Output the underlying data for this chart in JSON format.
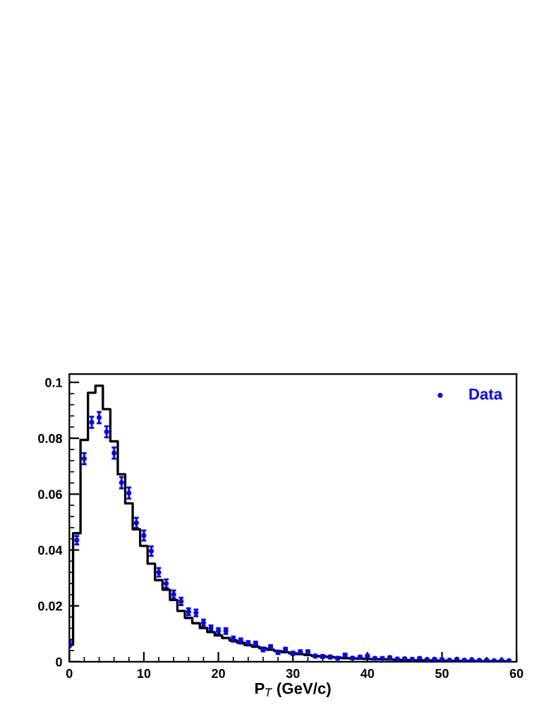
{
  "chart_data": {
    "type": "scatter",
    "xlabel": "P$_{T}$ (GeV/c)",
    "xlim": [
      0,
      60
    ],
    "xticks": [
      0,
      10,
      20,
      30,
      40,
      50,
      60
    ],
    "ylim": [
      0,
      0.103
    ],
    "yticks": [
      0,
      0.02,
      0.04,
      0.06,
      0.08,
      0.1
    ],
    "legend": "top right",
    "grid": false,
    "series": [
      {
        "name": "Data",
        "color": "#0000ff",
        "marker": "circle",
        "x": [
          0,
          1,
          2,
          3,
          4,
          5,
          6,
          7,
          8,
          9,
          10,
          11,
          12,
          13,
          14,
          15,
          16,
          17,
          18,
          19,
          20,
          21,
          22,
          23,
          24,
          25,
          26,
          27,
          28,
          29,
          30,
          31,
          32,
          33,
          34,
          35,
          36,
          37,
          38,
          39,
          40,
          41,
          42,
          43,
          44,
          45,
          46,
          47,
          48,
          49,
          50,
          51,
          52,
          53,
          54,
          55,
          56,
          57,
          58,
          59
        ],
        "values": [
          0.0064,
          0.0435,
          0.0727,
          0.0857,
          0.0874,
          0.0823,
          0.0747,
          0.0641,
          0.0604,
          0.0497,
          0.0452,
          0.0396,
          0.032,
          0.028,
          0.0241,
          0.0216,
          0.0179,
          0.0175,
          0.014,
          0.012,
          0.011,
          0.011,
          0.0081,
          0.0074,
          0.0066,
          0.0064,
          0.0044,
          0.0052,
          0.0034,
          0.0044,
          0.003,
          0.0035,
          0.0035,
          0.002,
          0.0019,
          0.0017,
          0.0013,
          0.0024,
          0.0013,
          0.0017,
          0.002,
          0.0012,
          0.0012,
          0.0015,
          0.001,
          0.0011,
          0.0009,
          0.0012,
          0.0008,
          0.0009,
          0.0008,
          0.0006,
          0.0009,
          0.0006,
          0.0007,
          0.0005,
          0.0006,
          0.0004,
          0.0005,
          0.0004
        ],
        "errors": [
          0.001,
          0.0015,
          0.002,
          0.002,
          0.002,
          0.002,
          0.002,
          0.002,
          0.002,
          0.0018,
          0.0018,
          0.0017,
          0.0015,
          0.0015,
          0.0014,
          0.0013,
          0.0012,
          0.0012,
          0.0011,
          0.001,
          0.001,
          0.001,
          0.0009,
          0.0009,
          0.0008,
          0.0008,
          0.0007,
          0.0007,
          0.0006,
          0.0006,
          0.0006,
          0.0006,
          0.0006,
          0.0005,
          0.0005,
          0.0005,
          0.0004,
          0.0005,
          0.0004,
          0.0004,
          0.0005,
          0.0004,
          0.0004,
          0.0004,
          0.0003,
          0.0003,
          0.0003,
          0.0003,
          0.0003,
          0.0003,
          0.0003,
          0.0002,
          0.0003,
          0.0002,
          0.0002,
          0.0002,
          0.0002,
          0.0002,
          0.0002,
          0.0002
        ]
      },
      {
        "type": "step",
        "color": "#000000",
        "line_style": "solid",
        "x": [
          0,
          1,
          2,
          3,
          4,
          5,
          6,
          7,
          8,
          9,
          10,
          11,
          12,
          13,
          14,
          15,
          16,
          17,
          18,
          19,
          20,
          21,
          22,
          23,
          24,
          25,
          26,
          27,
          28,
          29,
          30,
          31,
          32,
          33,
          34,
          35,
          36,
          37,
          38,
          39,
          40,
          41,
          42,
          43,
          44,
          45,
          46,
          47,
          48,
          49,
          50,
          51,
          52,
          53,
          54,
          55,
          56,
          57,
          58,
          59
        ],
        "values": [
          0.0061,
          0.046,
          0.0794,
          0.0963,
          0.0988,
          0.0904,
          0.0789,
          0.0671,
          0.0567,
          0.0474,
          0.0415,
          0.0351,
          0.0292,
          0.0258,
          0.0221,
          0.0182,
          0.0157,
          0.0138,
          0.0121,
          0.0106,
          0.0094,
          0.0085,
          0.0076,
          0.0068,
          0.006,
          0.0054,
          0.0048,
          0.0043,
          0.0038,
          0.0034,
          0.003,
          0.0027,
          0.0024,
          0.0021,
          0.0019,
          0.0017,
          0.0015,
          0.0013,
          0.0012,
          0.0011,
          0.001,
          0.0009,
          0.0009,
          0.0008,
          0.0007,
          0.0006,
          0.0005,
          0.0005,
          0.0005,
          0.0004,
          0.0004,
          0.0003,
          0.0003,
          0.0003,
          0.0003,
          0.0002,
          0.0002,
          0.0002,
          0.0002,
          0.0002
        ]
      }
    ]
  }
}
